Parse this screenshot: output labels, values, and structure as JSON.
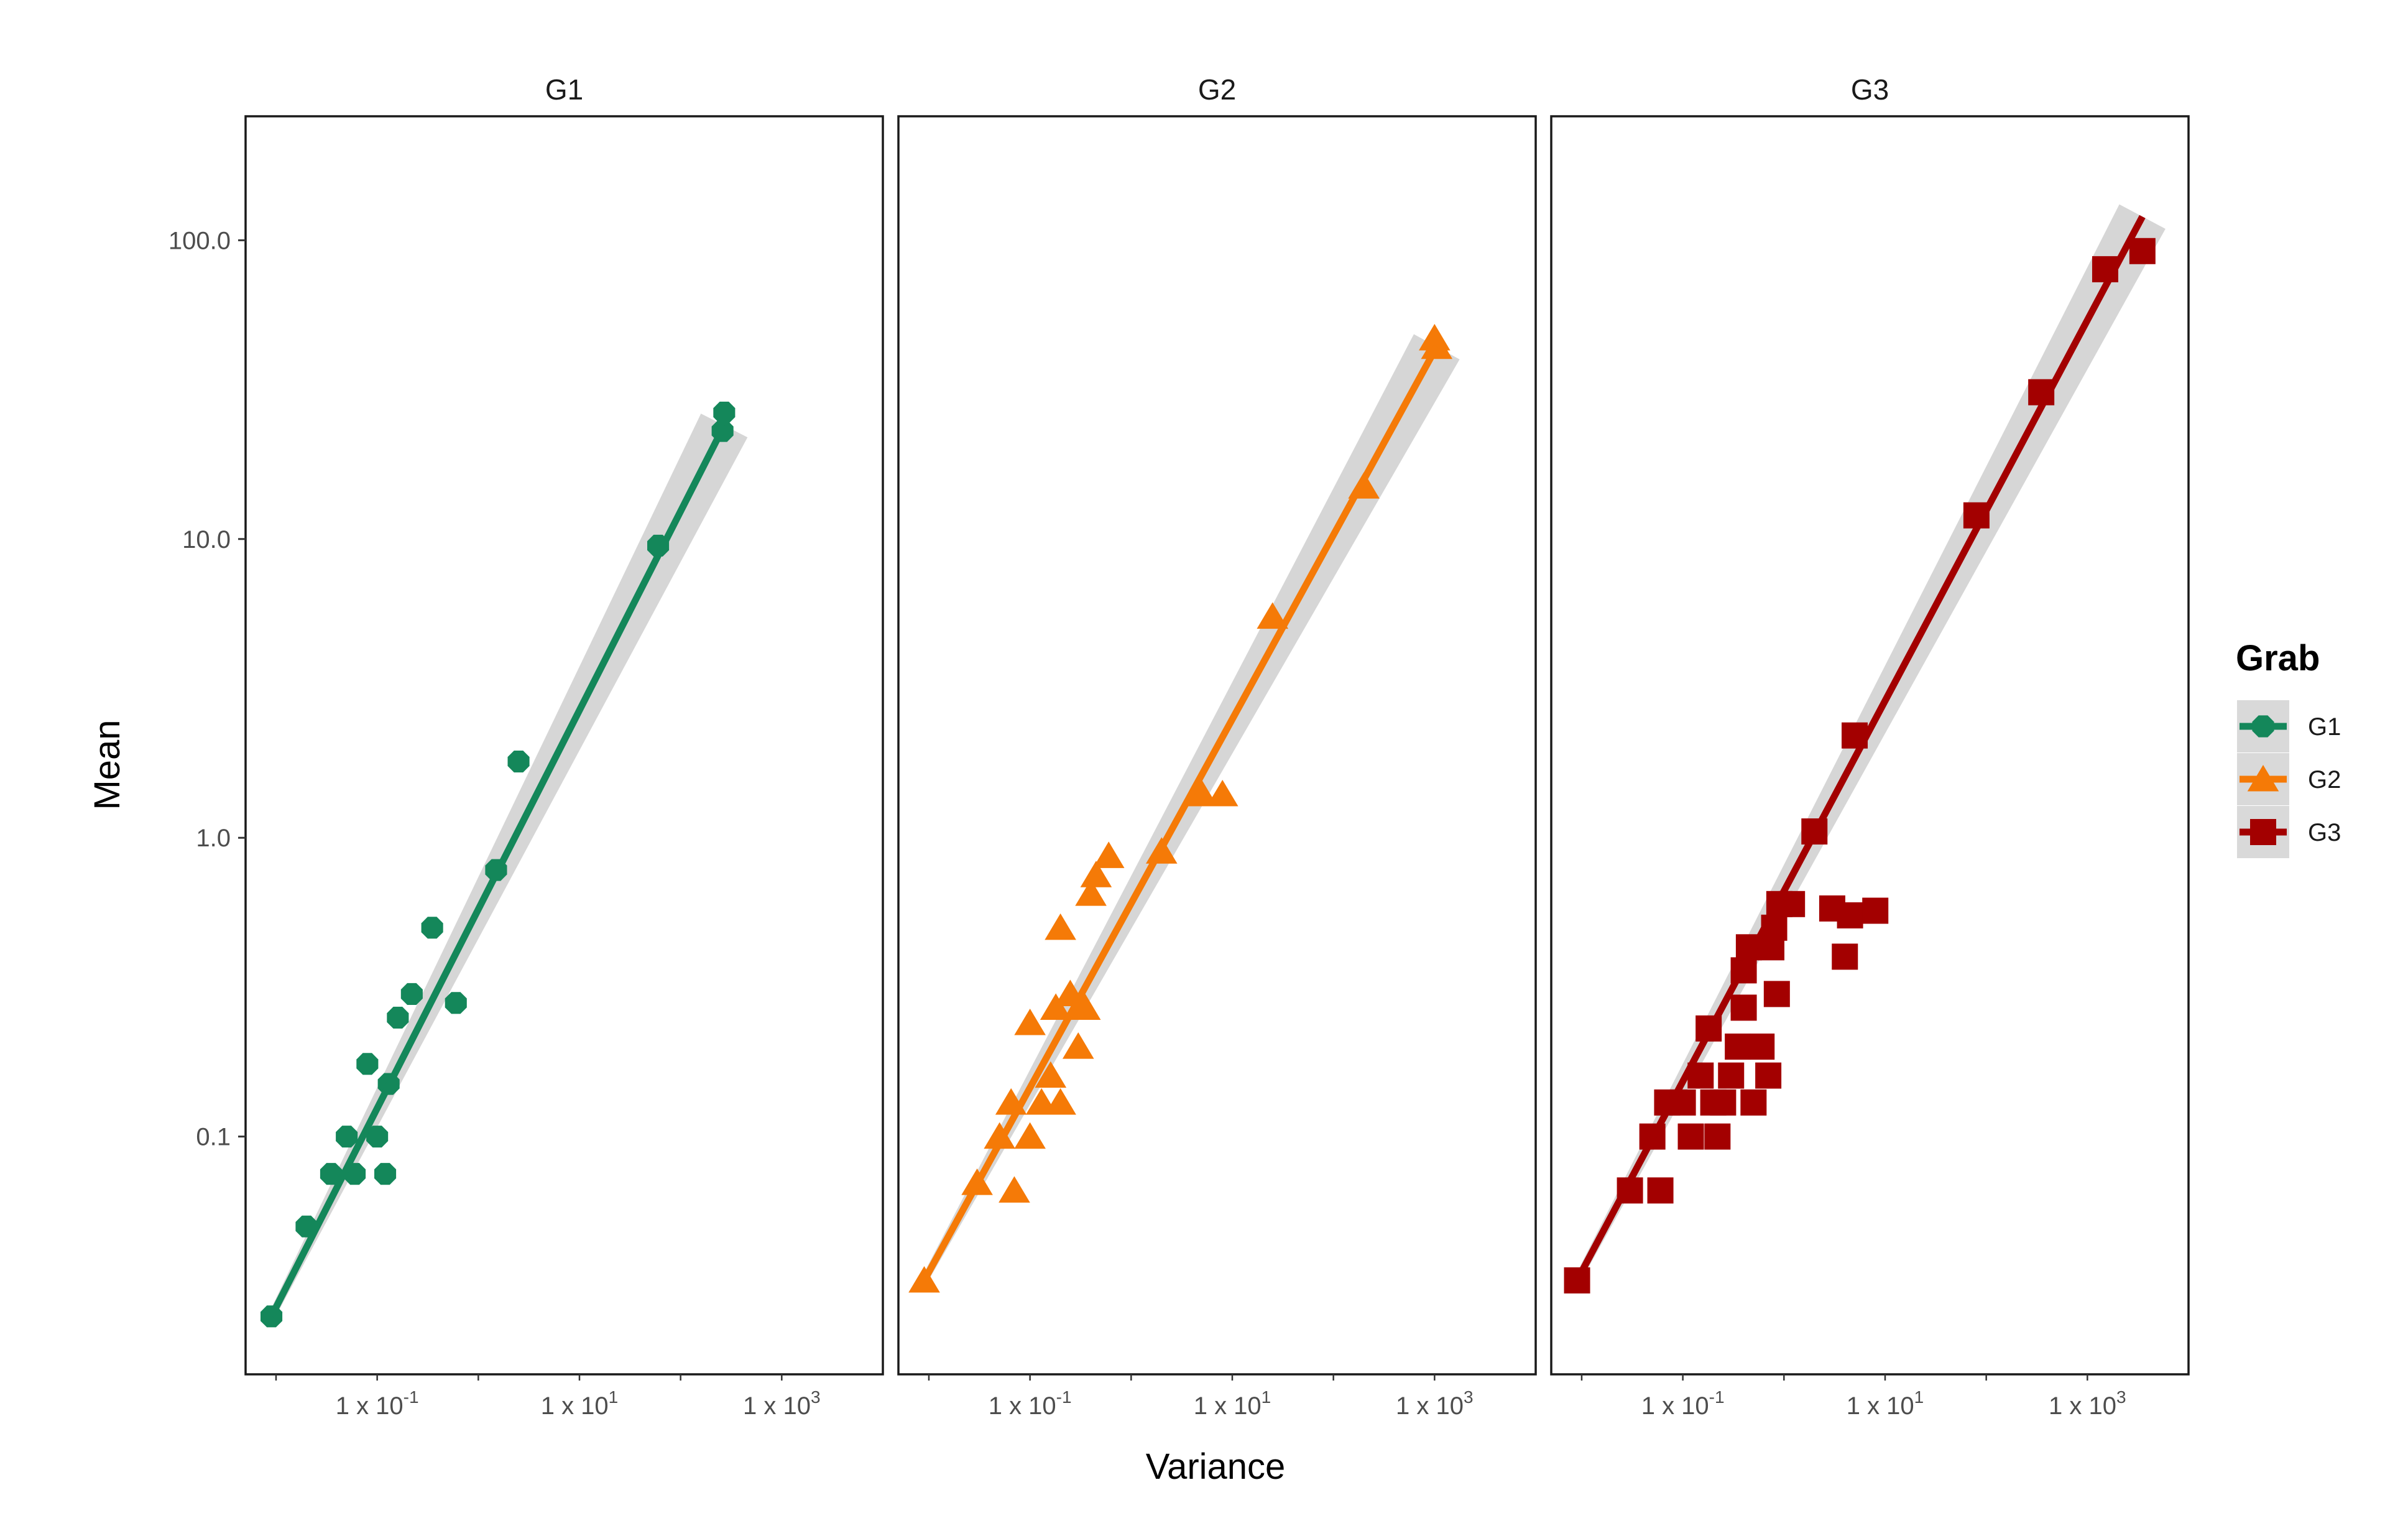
{
  "chart_data": {
    "type": "scatter",
    "facets": [
      "G1",
      "G2",
      "G3"
    ],
    "xlabel": "Variance",
    "ylabel": "Mean",
    "x_scale": "log10",
    "y_scale": "log10",
    "xlim": [
      0.005,
      10000
    ],
    "ylim": [
      0.016,
      260
    ],
    "x_ticks": [
      {
        "value": 0.1,
        "mantissa": "1 x 10",
        "exponent": "-1"
      },
      {
        "value": 10,
        "mantissa": "1 x 10",
        "exponent": "1"
      },
      {
        "value": 1000,
        "mantissa": "1 x 10",
        "exponent": "3"
      }
    ],
    "y_ticks": [
      {
        "value": 0.1,
        "label": "0.1"
      },
      {
        "value": 1,
        "label": "1.0"
      },
      {
        "value": 10,
        "label": "10.0"
      },
      {
        "value": 100,
        "label": "100.0"
      }
    ],
    "grid": false,
    "legend": {
      "title": "Grab",
      "position": "right"
    },
    "series": [
      {
        "name": "G1",
        "color": "#14875a",
        "marker": "circle",
        "points": [
          [
            0.009,
            0.025
          ],
          [
            0.02,
            0.05
          ],
          [
            0.035,
            0.075
          ],
          [
            0.05,
            0.1
          ],
          [
            0.06,
            0.075
          ],
          [
            0.08,
            0.175
          ],
          [
            0.1,
            0.1
          ],
          [
            0.12,
            0.075
          ],
          [
            0.13,
            0.15
          ],
          [
            0.16,
            0.25
          ],
          [
            0.22,
            0.3
          ],
          [
            0.35,
            0.5
          ],
          [
            0.6,
            0.28
          ],
          [
            1.5,
            0.78
          ],
          [
            2.5,
            1.8
          ],
          [
            60,
            9.5
          ],
          [
            260,
            23
          ],
          [
            270,
            26.5
          ]
        ],
        "fit": [
          [
            0.009,
            0.025
          ],
          [
            270,
            24
          ]
        ]
      },
      {
        "name": "G2",
        "color": "#f57a07",
        "marker": "triangle",
        "points": [
          [
            0.009,
            0.033
          ],
          [
            0.03,
            0.07
          ],
          [
            0.05,
            0.1
          ],
          [
            0.065,
            0.13
          ],
          [
            0.07,
            0.066
          ],
          [
            0.1,
            0.24
          ],
          [
            0.1,
            0.1
          ],
          [
            0.13,
            0.13
          ],
          [
            0.16,
            0.16
          ],
          [
            0.18,
            0.27
          ],
          [
            0.2,
            0.13
          ],
          [
            0.2,
            0.5
          ],
          [
            0.25,
            0.3
          ],
          [
            0.3,
            0.2
          ],
          [
            0.35,
            0.27
          ],
          [
            0.4,
            0.65
          ],
          [
            0.45,
            0.75
          ],
          [
            0.6,
            0.87
          ],
          [
            2,
            0.9
          ],
          [
            5,
            1.4
          ],
          [
            8,
            1.4
          ],
          [
            25,
            5.5
          ],
          [
            200,
            15
          ],
          [
            1000,
            47
          ],
          [
            1050,
            44
          ]
        ],
        "fit": [
          [
            0.009,
            0.033
          ],
          [
            1050,
            44
          ]
        ]
      },
      {
        "name": "G3",
        "color": "#a30000",
        "marker": "square",
        "points": [
          [
            0.009,
            0.033
          ],
          [
            0.03,
            0.066
          ],
          [
            0.05,
            0.1
          ],
          [
            0.06,
            0.066
          ],
          [
            0.07,
            0.13
          ],
          [
            0.1,
            0.13
          ],
          [
            0.12,
            0.1
          ],
          [
            0.15,
            0.16
          ],
          [
            0.18,
            0.23
          ],
          [
            0.2,
            0.13
          ],
          [
            0.22,
            0.1
          ],
          [
            0.25,
            0.13
          ],
          [
            0.3,
            0.16
          ],
          [
            0.35,
            0.2
          ],
          [
            0.4,
            0.27
          ],
          [
            0.4,
            0.36
          ],
          [
            0.45,
            0.43
          ],
          [
            0.5,
            0.13
          ],
          [
            0.6,
            0.2
          ],
          [
            0.7,
            0.16
          ],
          [
            0.75,
            0.43
          ],
          [
            0.8,
            0.5
          ],
          [
            0.85,
            0.3
          ],
          [
            0.9,
            0.6
          ],
          [
            1.2,
            0.6
          ],
          [
            2,
            1.05
          ],
          [
            3,
            0.58
          ],
          [
            4,
            0.4
          ],
          [
            4.5,
            0.55
          ],
          [
            5,
            2.2
          ],
          [
            8,
            0.57
          ],
          [
            80,
            12
          ],
          [
            350,
            31
          ],
          [
            1500,
            80
          ],
          [
            3500,
            92
          ]
        ],
        "fit": [
          [
            0.009,
            0.033
          ],
          [
            3500,
            120
          ]
        ]
      }
    ]
  }
}
